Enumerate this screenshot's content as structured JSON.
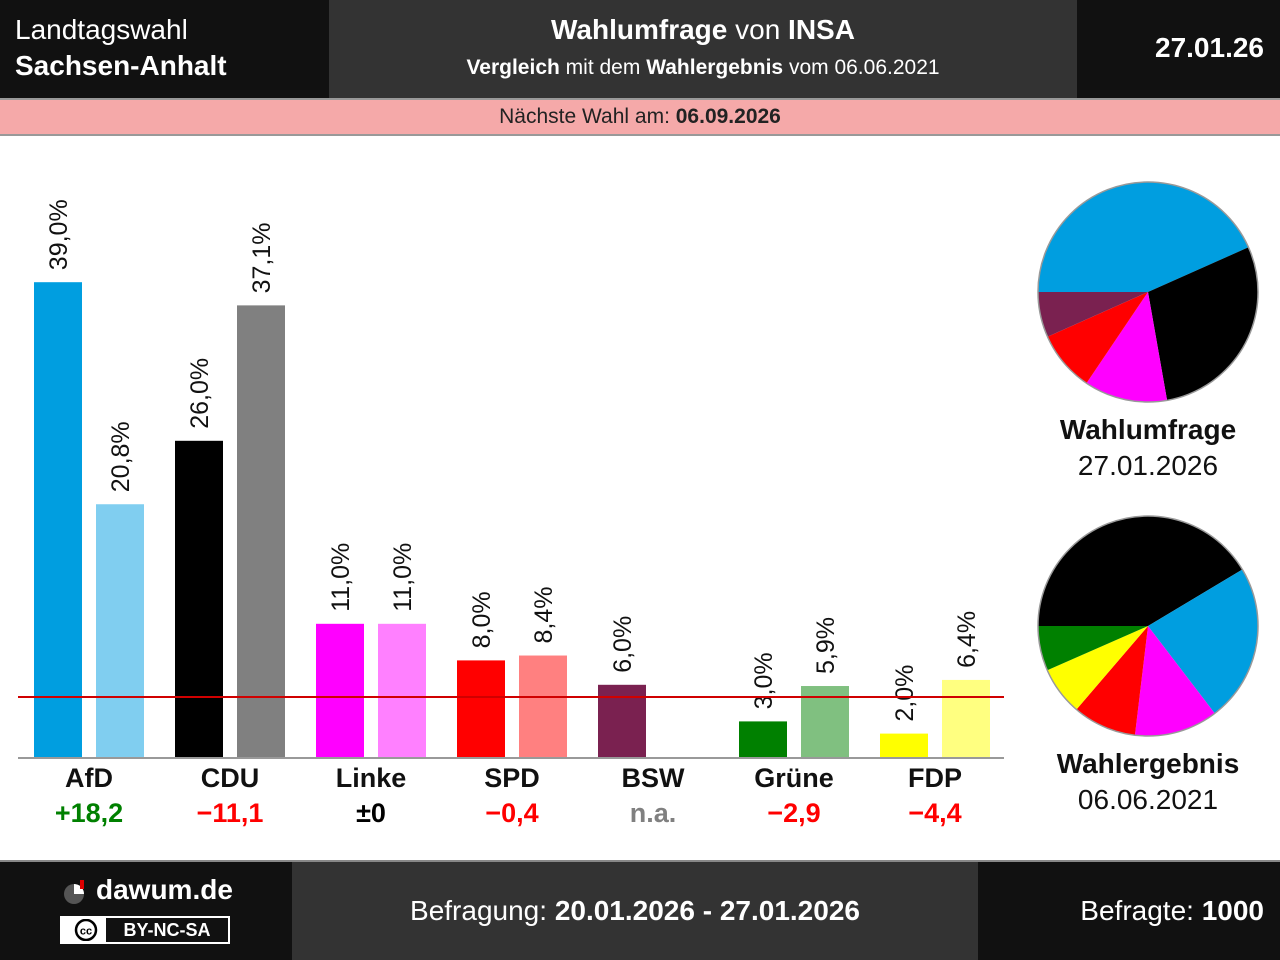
{
  "header": {
    "election_line1": "Landtagswahl",
    "election_line2": "Sachsen-Anhalt",
    "title_bold1": "Wahlumfrage",
    "title_mid": " von ",
    "title_bold2": "INSA",
    "sub_bold1": "Vergleich",
    "sub_mid": " mit dem ",
    "sub_bold2": "Wahlergebnis",
    "sub_end": " vom 06.06.2021",
    "date": "27.01.26"
  },
  "next_election": {
    "label": "Nächste Wahl am: ",
    "date": "06.09.2026"
  },
  "chart_data": {
    "type": "bar",
    "categories": [
      "AfD",
      "CDU",
      "Linke",
      "SPD",
      "BSW",
      "Grüne",
      "FDP"
    ],
    "series": [
      {
        "name": "Wahlumfrage",
        "values": [
          39.0,
          26.0,
          11.0,
          8.0,
          6.0,
          3.0,
          2.0
        ],
        "labels": [
          "39,0%",
          "26,0%",
          "11,0%",
          "8,0%",
          "6,0%",
          "3,0%",
          "2,0%"
        ],
        "colors": [
          "#009ee0",
          "#000000",
          "#ff00ff",
          "#ff0000",
          "#7a2150",
          "#008000",
          "#ffff00"
        ]
      },
      {
        "name": "Wahlergebnis",
        "values": [
          20.8,
          37.1,
          11.0,
          8.4,
          null,
          5.9,
          6.4
        ],
        "labels": [
          "20,8%",
          "37,1%",
          "11,0%",
          "8,4%",
          "",
          "5,9%",
          "6,4%"
        ],
        "colors": [
          "#80cef0",
          "#808080",
          "#ff80ff",
          "#ff8080",
          "#bc90a8",
          "#80c080",
          "#ffff80"
        ]
      }
    ],
    "diffs": [
      "+18,2",
      "−11,1",
      "±0",
      "−0,4",
      "n.a.",
      "−2,9",
      "−4,4"
    ],
    "diff_colors": [
      "#008000",
      "#ff0000",
      "#000000",
      "#ff0000",
      "#808080",
      "#ff0000",
      "#ff0000"
    ],
    "threshold": 5,
    "threshold_color": "#d00000",
    "ylim": [
      0,
      41
    ],
    "grid": false
  },
  "pies": [
    {
      "label": "Wahlumfrage",
      "date": "27.01.2026",
      "slices": [
        {
          "party": "AfD",
          "value": 39.0,
          "color": "#009ee0"
        },
        {
          "party": "CDU",
          "value": 26.0,
          "color": "#000000"
        },
        {
          "party": "Linke",
          "value": 11.0,
          "color": "#ff00ff"
        },
        {
          "party": "SPD",
          "value": 8.0,
          "color": "#ff0000"
        },
        {
          "party": "BSW",
          "value": 6.0,
          "color": "#7a2150"
        }
      ]
    },
    {
      "label": "Wahlergebnis",
      "date": "06.06.2021",
      "slices": [
        {
          "party": "CDU",
          "value": 37.1,
          "color": "#000000"
        },
        {
          "party": "AfD",
          "value": 20.8,
          "color": "#009ee0"
        },
        {
          "party": "Linke",
          "value": 11.0,
          "color": "#ff00ff"
        },
        {
          "party": "SPD",
          "value": 8.4,
          "color": "#ff0000"
        },
        {
          "party": "FDP",
          "value": 6.4,
          "color": "#ffff00"
        },
        {
          "party": "Grüne",
          "value": 5.9,
          "color": "#008000"
        }
      ]
    }
  ],
  "footer": {
    "brand": "dawum.de",
    "license": "BY-NC-SA",
    "period_label": "Befragung: ",
    "period": "20.01.2026 - 27.01.2026",
    "respondents_label": "Befragte: ",
    "respondents": "1000"
  }
}
